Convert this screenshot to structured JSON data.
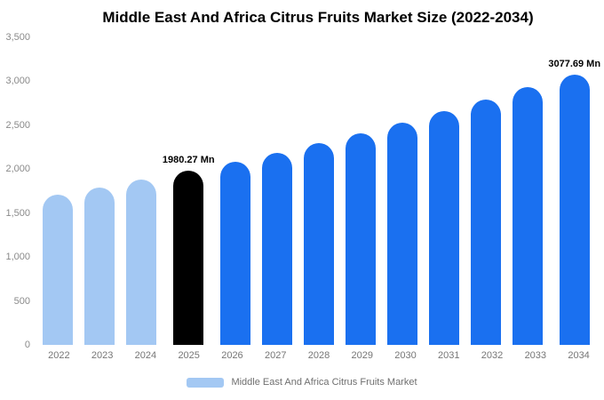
{
  "title": "Middle East And Africa Citrus Fruits Market Size (2022-2034)",
  "legend": {
    "label": "Middle East And Africa Citrus Fruits Market",
    "swatch_color": "#a3c8f3"
  },
  "colors": {
    "historical": "#a3c8f3",
    "base_year": "#000000",
    "forecast": "#1a70f0"
  },
  "chart_data": {
    "type": "bar",
    "title": "Middle East And Africa Citrus Fruits Market Size (2022-2034)",
    "unit": "Mn",
    "categories": [
      "2022",
      "2023",
      "2024",
      "2025",
      "2026",
      "2027",
      "2028",
      "2029",
      "2030",
      "2031",
      "2032",
      "2033",
      "2034"
    ],
    "values": [
      1710,
      1795,
      1886,
      1980.27,
      2080,
      2184,
      2294,
      2409,
      2530,
      2657,
      2790,
      2930,
      3077.69
    ],
    "bar_colors": [
      "#a3c8f3",
      "#a3c8f3",
      "#a3c8f3",
      "#000000",
      "#1a70f0",
      "#1a70f0",
      "#1a70f0",
      "#1a70f0",
      "#1a70f0",
      "#1a70f0",
      "#1a70f0",
      "#1a70f0",
      "#1a70f0"
    ],
    "xlabel": "",
    "ylabel": "",
    "ylim": [
      0,
      3500
    ],
    "y_ticks": [
      "0",
      "500",
      "1,000",
      "1,500",
      "2,000",
      "2,500",
      "3,000",
      "3,500"
    ],
    "grid": false,
    "legend_position": "bottom",
    "legend_entries": [
      "Middle East And Africa Citrus Fruits Market"
    ],
    "annotations": [
      {
        "category": "2025",
        "index": 3,
        "text": "1980.27 Mn"
      },
      {
        "category": "2034",
        "index": 12,
        "text": "3077.69 Mn"
      }
    ]
  }
}
